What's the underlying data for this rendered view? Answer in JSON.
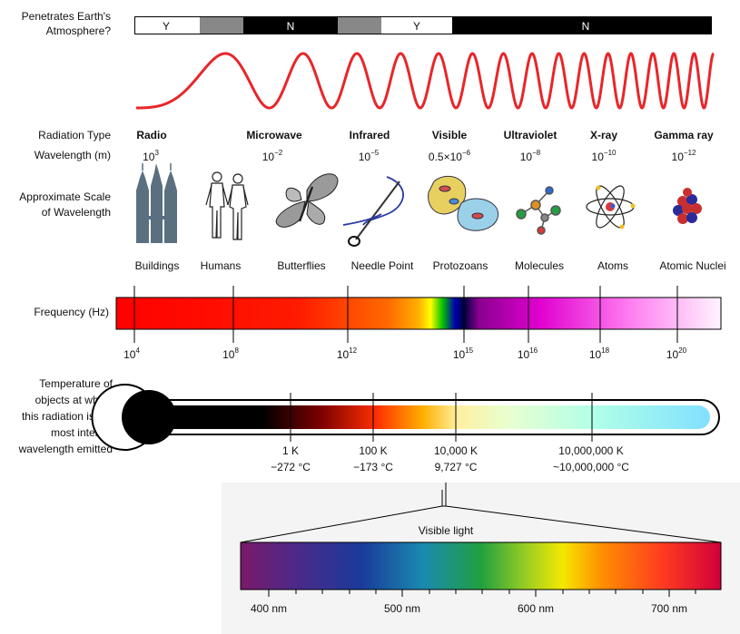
{
  "row_labels": {
    "penetrates": [
      "Penetrates Earth's",
      "Atmosphere?"
    ],
    "radiation_type": "Radiation Type",
    "wavelength": "Wavelength (m)",
    "scale": [
      "Approximate Scale",
      "of Wavelength"
    ],
    "frequency": "Frequency (Hz)",
    "temperature": [
      "Temperature of",
      "objects at which",
      "this radiation is the",
      "most intense",
      "wavelength emitted"
    ]
  },
  "atmosphere_bar": [
    "Y",
    "N",
    "Y",
    "N"
  ],
  "radiation_types": [
    {
      "name": "Radio",
      "wl_base": "10",
      "wl_exp": "3"
    },
    {
      "name": "Microwave",
      "wl_base": "10",
      "wl_exp": "−2"
    },
    {
      "name": "Infrared",
      "wl_base": "10",
      "wl_exp": "−5"
    },
    {
      "name": "Visible",
      "wl_base": "0.5×10",
      "wl_exp": "−6"
    },
    {
      "name": "Ultraviolet",
      "wl_base": "10",
      "wl_exp": "−8"
    },
    {
      "name": "X-ray",
      "wl_base": "10",
      "wl_exp": "−10"
    },
    {
      "name": "Gamma ray",
      "wl_base": "10",
      "wl_exp": "−12"
    }
  ],
  "scale_objects": [
    "Buildings",
    "Humans",
    "Butterflies",
    "Needle Point",
    "Protozoans",
    "Molecules",
    "Atoms",
    "Atomic Nuclei"
  ],
  "frequency_ticks": [
    {
      "base": "10",
      "exp": "4"
    },
    {
      "base": "10",
      "exp": "8"
    },
    {
      "base": "10",
      "exp": "12"
    },
    {
      "base": "10",
      "exp": "15"
    },
    {
      "base": "10",
      "exp": "16"
    },
    {
      "base": "10",
      "exp": "18"
    },
    {
      "base": "10",
      "exp": "20"
    }
  ],
  "temperatures": [
    {
      "kelvin": "1 K",
      "celsius": "−272 °C"
    },
    {
      "kelvin": "100 K",
      "celsius": "−173 °C"
    },
    {
      "kelvin": "10,000 K",
      "celsius": "9,727 °C"
    },
    {
      "kelvin": "10,000,000 K",
      "celsius": "~10,000,000 °C"
    }
  ],
  "visible_light": {
    "title": "Visible light",
    "ticks": [
      "400 nm",
      "500 nm",
      "600 nm",
      "700 nm"
    ]
  },
  "colors": {
    "wave": "#e8262a",
    "bar_black": "#000000",
    "bar_gray": "#888888"
  }
}
